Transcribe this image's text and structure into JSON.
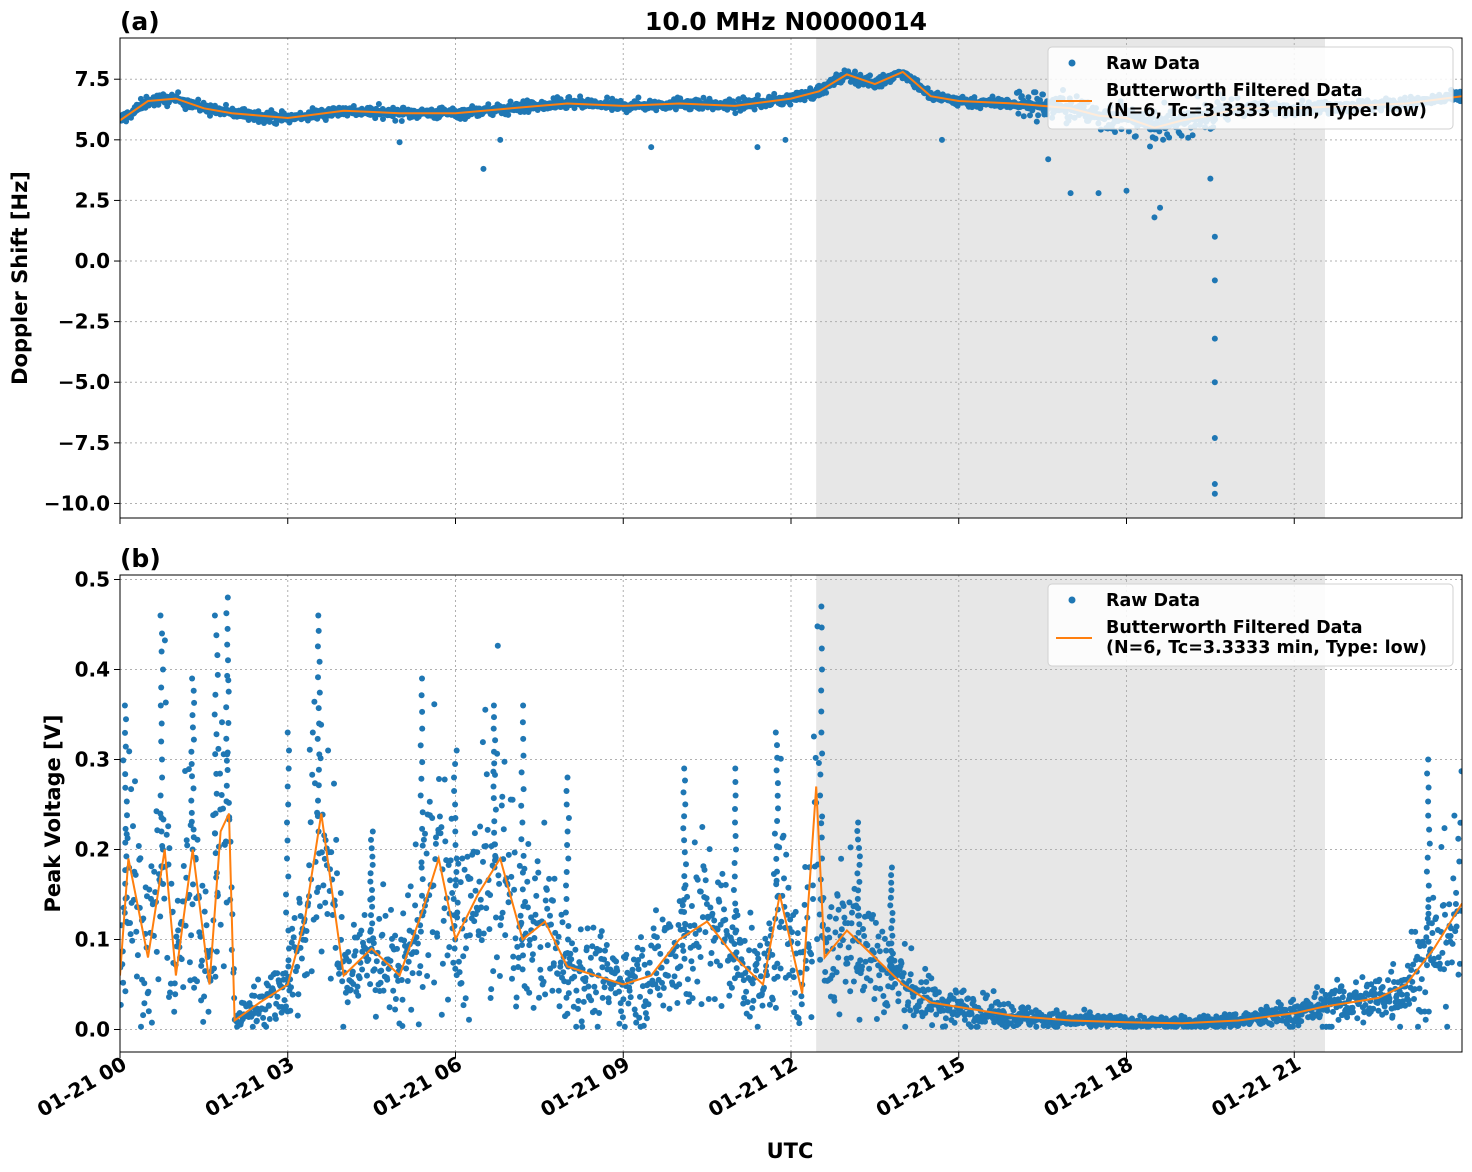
{
  "figure": {
    "title": "10.0 MHz N0000014",
    "xlabel": "UTC"
  },
  "chart_data": [
    {
      "type": "scatter",
      "panel_label": "(a)",
      "title": "10.0 MHz N0000014",
      "xlabel": "UTC",
      "ylabel": "Doppler Shift [Hz]",
      "x_unit": "hours since 01-21 00 UTC",
      "xlim": [
        0,
        24
      ],
      "ylim": [
        -10.6,
        9.2
      ],
      "x_ticks": [
        0,
        3,
        6,
        9,
        12,
        15,
        18,
        21
      ],
      "x_tick_labels": [
        "01-21 00",
        "01-21 03",
        "01-21 06",
        "01-21 09",
        "01-21 12",
        "01-21 15",
        "01-21 18",
        "01-21 21"
      ],
      "y_ticks": [
        7.5,
        5.0,
        2.5,
        0.0,
        -2.5,
        -5.0,
        -7.5,
        -10.0
      ],
      "y_tick_labels": [
        "7.5",
        "5.0",
        "2.5",
        "0.0",
        "−2.5",
        "−5.0",
        "−7.5",
        "−10.0"
      ],
      "shaded_region": [
        12.45,
        21.55
      ],
      "grid": true,
      "legend_position": "top-right",
      "series": [
        {
          "name": "Raw Data",
          "kind": "points",
          "color": "#1f77b4",
          "x": [
            0,
            0.5,
            1.0,
            1.5,
            2.0,
            2.5,
            3.0,
            4.0,
            5.0,
            6.0,
            7.0,
            8.0,
            9.0,
            10.0,
            11.0,
            12.0,
            12.5,
            13.0,
            13.5,
            14.0,
            14.5,
            15.0,
            16.0,
            17.0,
            17.5,
            18.0,
            18.5,
            19.0,
            19.5,
            20.0,
            21.0,
            22.0,
            23.0,
            24.0
          ],
          "y": [
            5.8,
            6.6,
            6.7,
            6.3,
            6.1,
            6.0,
            5.9,
            6.2,
            6.1,
            6.1,
            6.3,
            6.5,
            6.4,
            6.5,
            6.4,
            6.7,
            7.0,
            7.7,
            7.3,
            7.8,
            6.8,
            6.6,
            6.5,
            6.3,
            6.0,
            5.9,
            5.5,
            5.8,
            6.0,
            6.3,
            6.3,
            6.4,
            6.5,
            6.8
          ],
          "outliers": [
            {
              "x": 5.0,
              "y": 4.9
            },
            {
              "x": 6.5,
              "y": 3.8
            },
            {
              "x": 6.8,
              "y": 5.0
            },
            {
              "x": 9.5,
              "y": 4.7
            },
            {
              "x": 11.4,
              "y": 4.7
            },
            {
              "x": 11.9,
              "y": 5.0
            },
            {
              "x": 14.7,
              "y": 5.0
            },
            {
              "x": 16.6,
              "y": 4.2
            },
            {
              "x": 17.0,
              "y": 2.8
            },
            {
              "x": 17.5,
              "y": 2.8
            },
            {
              "x": 18.0,
              "y": 2.9
            },
            {
              "x": 18.5,
              "y": 1.8
            },
            {
              "x": 18.6,
              "y": 2.2
            },
            {
              "x": 19.5,
              "y": 3.4
            },
            {
              "x": 19.58,
              "y": 1.0
            },
            {
              "x": 19.58,
              "y": -0.8
            },
            {
              "x": 19.58,
              "y": -3.2
            },
            {
              "x": 19.58,
              "y": -5.0
            },
            {
              "x": 19.58,
              "y": -7.3
            },
            {
              "x": 19.58,
              "y": -9.2
            },
            {
              "x": 19.58,
              "y": -9.6
            }
          ]
        },
        {
          "name": "Butterworth Filtered Data\n(N=6, Tc=3.3333 min, Type: low)",
          "kind": "line",
          "color": "#ff7f0e",
          "x": [
            0,
            0.5,
            1.0,
            1.5,
            2.0,
            2.5,
            3.0,
            4.0,
            5.0,
            6.0,
            7.0,
            8.0,
            9.0,
            10.0,
            11.0,
            12.0,
            12.5,
            13.0,
            13.5,
            14.0,
            14.5,
            15.0,
            16.0,
            17.0,
            17.5,
            18.0,
            18.5,
            19.0,
            19.5,
            20.0,
            21.0,
            22.0,
            23.0,
            24.0
          ],
          "y": [
            5.8,
            6.6,
            6.7,
            6.3,
            6.1,
            6.0,
            5.9,
            6.2,
            6.1,
            6.1,
            6.3,
            6.5,
            6.4,
            6.5,
            6.4,
            6.7,
            7.0,
            7.7,
            7.3,
            7.8,
            6.8,
            6.6,
            6.5,
            6.3,
            6.0,
            5.9,
            5.5,
            5.8,
            6.0,
            6.3,
            6.3,
            6.4,
            6.5,
            6.8
          ]
        }
      ]
    },
    {
      "type": "scatter",
      "panel_label": "(b)",
      "xlabel": "UTC",
      "ylabel": "Peak Voltage [V]",
      "x_unit": "hours since 01-21 00 UTC",
      "xlim": [
        0,
        24
      ],
      "ylim": [
        -0.025,
        0.505
      ],
      "x_ticks": [
        0,
        3,
        6,
        9,
        12,
        15,
        18,
        21
      ],
      "x_tick_labels": [
        "01-21 00",
        "01-21 03",
        "01-21 06",
        "01-21 09",
        "01-21 12",
        "01-21 15",
        "01-21 18",
        "01-21 21"
      ],
      "y_ticks": [
        0.0,
        0.1,
        0.2,
        0.3,
        0.4,
        0.5
      ],
      "y_tick_labels": [
        "0.0",
        "0.1",
        "0.2",
        "0.3",
        "0.4",
        "0.5"
      ],
      "shaded_region": [
        12.45,
        21.55
      ],
      "grid": true,
      "legend_position": "top-right",
      "series": [
        {
          "name": "Raw Data",
          "kind": "points",
          "color": "#1f77b4",
          "x": [
            0,
            0.15,
            0.5,
            0.8,
            1.0,
            1.3,
            1.6,
            1.8,
            1.95,
            2.05,
            2.5,
            3.0,
            3.3,
            3.6,
            4.0,
            4.5,
            5.0,
            5.4,
            5.7,
            6.0,
            6.4,
            6.8,
            7.2,
            7.6,
            8.0,
            8.5,
            9.0,
            9.5,
            10.0,
            10.5,
            11.0,
            11.5,
            11.8,
            12.2,
            12.45,
            12.6,
            13.0,
            13.5,
            14.0,
            14.5,
            15.0,
            15.5,
            16.0,
            17.0,
            18.0,
            19.0,
            20.0,
            21.0,
            21.5,
            22.0,
            22.5,
            23.0,
            23.5,
            24.0
          ],
          "y": [
            0.06,
            0.19,
            0.08,
            0.2,
            0.06,
            0.2,
            0.05,
            0.22,
            0.24,
            0.01,
            0.03,
            0.05,
            0.12,
            0.24,
            0.06,
            0.09,
            0.06,
            0.13,
            0.19,
            0.1,
            0.15,
            0.19,
            0.1,
            0.12,
            0.07,
            0.06,
            0.05,
            0.06,
            0.1,
            0.12,
            0.08,
            0.05,
            0.15,
            0.04,
            0.27,
            0.08,
            0.11,
            0.08,
            0.05,
            0.03,
            0.025,
            0.02,
            0.015,
            0.01,
            0.008,
            0.007,
            0.01,
            0.018,
            0.025,
            0.03,
            0.035,
            0.05,
            0.09,
            0.14
          ],
          "peaks": [
            {
              "x": 0.1,
              "y": 0.36
            },
            {
              "x": 0.75,
              "y": 0.46
            },
            {
              "x": 1.3,
              "y": 0.39
            },
            {
              "x": 1.72,
              "y": 0.46
            },
            {
              "x": 1.92,
              "y": 0.48
            },
            {
              "x": 3.0,
              "y": 0.33
            },
            {
              "x": 3.55,
              "y": 0.46
            },
            {
              "x": 4.5,
              "y": 0.22
            },
            {
              "x": 5.4,
              "y": 0.39
            },
            {
              "x": 6.0,
              "y": 0.31
            },
            {
              "x": 6.7,
              "y": 0.36
            },
            {
              "x": 7.2,
              "y": 0.36
            },
            {
              "x": 8.0,
              "y": 0.28
            },
            {
              "x": 10.1,
              "y": 0.29
            },
            {
              "x": 11.0,
              "y": 0.29
            },
            {
              "x": 11.75,
              "y": 0.33
            },
            {
              "x": 12.55,
              "y": 0.47
            },
            {
              "x": 13.2,
              "y": 0.23
            },
            {
              "x": 13.8,
              "y": 0.18
            },
            {
              "x": 23.4,
              "y": 0.3
            }
          ]
        },
        {
          "name": "Butterworth Filtered Data\n(N=6, Tc=3.3333 min, Type: low)",
          "kind": "line",
          "color": "#ff7f0e",
          "x": [
            0,
            0.15,
            0.5,
            0.8,
            1.0,
            1.3,
            1.6,
            1.8,
            1.95,
            2.05,
            2.5,
            3.0,
            3.3,
            3.6,
            4.0,
            4.5,
            5.0,
            5.4,
            5.7,
            6.0,
            6.4,
            6.8,
            7.2,
            7.6,
            8.0,
            8.5,
            9.0,
            9.5,
            10.0,
            10.5,
            11.0,
            11.5,
            11.8,
            12.2,
            12.45,
            12.6,
            13.0,
            13.5,
            14.0,
            14.5,
            15.0,
            15.5,
            16.0,
            17.0,
            18.0,
            19.0,
            20.0,
            21.0,
            21.5,
            22.0,
            22.5,
            23.0,
            23.5,
            24.0
          ],
          "y": [
            0.06,
            0.19,
            0.08,
            0.2,
            0.06,
            0.2,
            0.05,
            0.22,
            0.24,
            0.01,
            0.03,
            0.05,
            0.12,
            0.24,
            0.06,
            0.09,
            0.06,
            0.13,
            0.19,
            0.1,
            0.15,
            0.19,
            0.1,
            0.12,
            0.07,
            0.06,
            0.05,
            0.06,
            0.1,
            0.12,
            0.08,
            0.05,
            0.15,
            0.04,
            0.27,
            0.08,
            0.11,
            0.08,
            0.05,
            0.03,
            0.025,
            0.02,
            0.015,
            0.01,
            0.008,
            0.007,
            0.01,
            0.018,
            0.025,
            0.03,
            0.035,
            0.05,
            0.09,
            0.14
          ]
        }
      ]
    }
  ]
}
